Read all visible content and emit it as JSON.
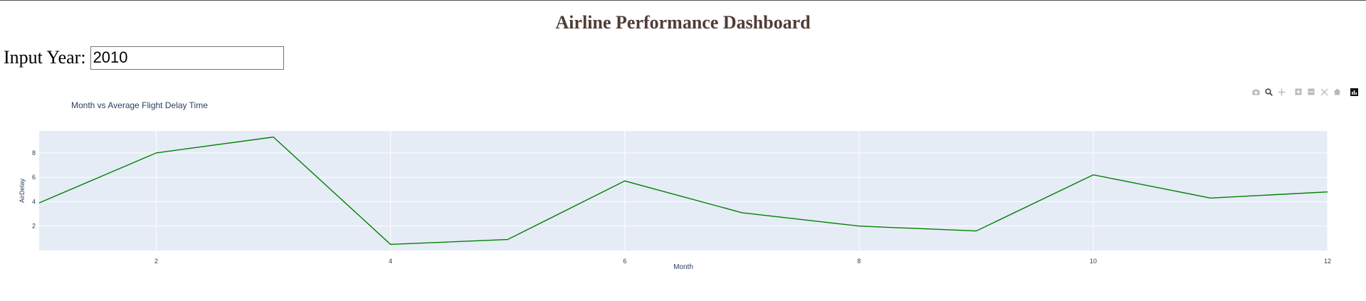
{
  "page": {
    "title": "Airline Performance Dashboard",
    "input_label": "Input Year:",
    "input_value": "2010"
  },
  "modebar": {
    "icons": [
      "camera-icon",
      "zoom-icon",
      "pan-icon",
      "zoom-in-icon",
      "zoom-out-icon",
      "autoscale-icon",
      "reset-axes-icon",
      "plotly-logo-icon"
    ]
  },
  "chart_data": {
    "type": "line",
    "title": "Month vs Average Flight Delay Time",
    "xlabel": "Month",
    "ylabel": "AirDelay",
    "x": [
      1,
      2,
      3,
      4,
      5,
      6,
      7,
      8,
      9,
      10,
      11,
      12
    ],
    "values": [
      3.9,
      8.0,
      9.3,
      0.5,
      0.9,
      5.7,
      3.1,
      2.0,
      1.6,
      6.2,
      4.3,
      4.8
    ],
    "xlim": [
      1,
      12
    ],
    "ylim": [
      0,
      9.8
    ],
    "xticks": [
      2,
      4,
      6,
      8,
      10,
      12
    ],
    "yticks": [
      2,
      4,
      6,
      8
    ],
    "grid": true,
    "line_color": "#008000",
    "plot_bg": "#e5ecf6"
  }
}
